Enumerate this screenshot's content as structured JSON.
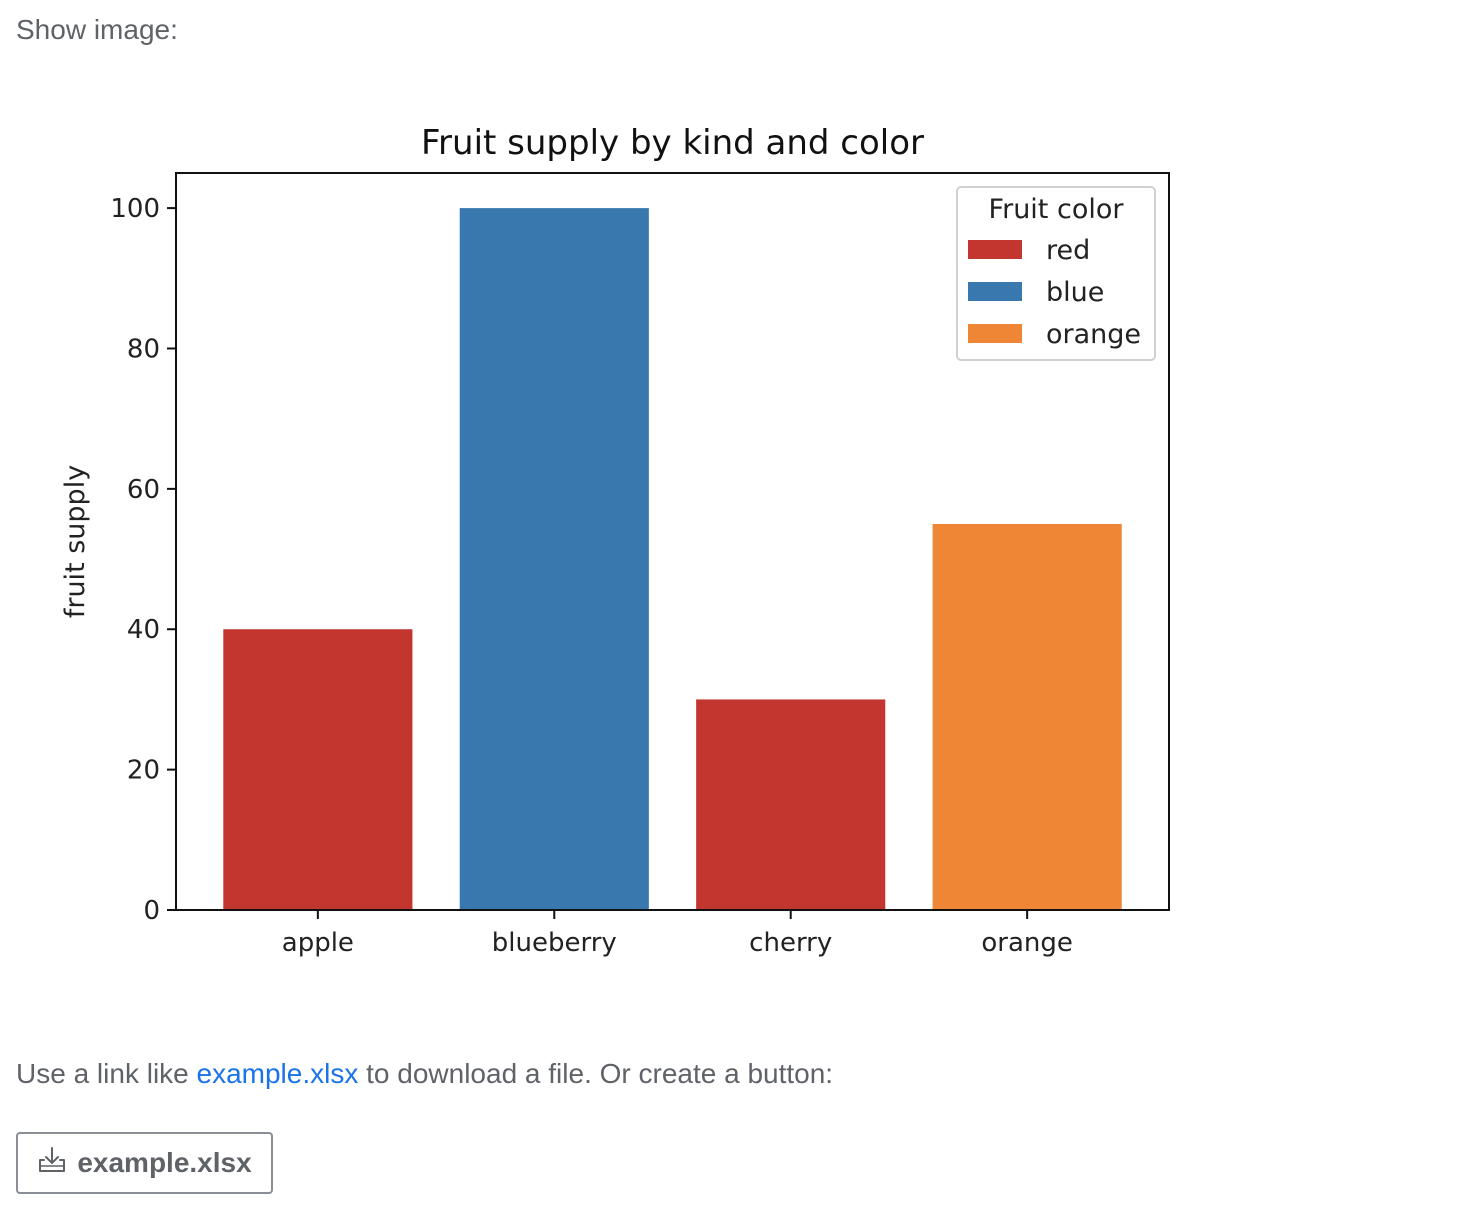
{
  "header": {
    "show_image_label": "Show image:"
  },
  "chart_data": {
    "type": "bar",
    "title": "Fruit supply by kind and color",
    "xlabel": "",
    "ylabel": "fruit supply",
    "categories": [
      "apple",
      "blueberry",
      "cherry",
      "orange"
    ],
    "values": [
      40,
      100,
      30,
      55
    ],
    "bar_colors": [
      "#c3362f",
      "#3978ae",
      "#c3362f",
      "#ee8636"
    ],
    "bar_labels": [
      "red",
      "blue",
      "_red",
      "orange"
    ],
    "ylim": [
      0,
      105
    ],
    "yticks": [
      0,
      20,
      40,
      60,
      80,
      100
    ],
    "grid": false,
    "legend": {
      "title": "Fruit color",
      "placement": "upper-right",
      "entries": [
        {
          "label": "red",
          "color": "#c3362f"
        },
        {
          "label": "blue",
          "color": "#3978ae"
        },
        {
          "label": "orange",
          "color": "#ee8636"
        }
      ]
    }
  },
  "description": {
    "prefix": "Use a link like ",
    "link_text": "example.xlsx",
    "suffix": " to download a file. Or create a button:"
  },
  "download_button": {
    "label": "example.xlsx",
    "icon": "download-icon"
  }
}
